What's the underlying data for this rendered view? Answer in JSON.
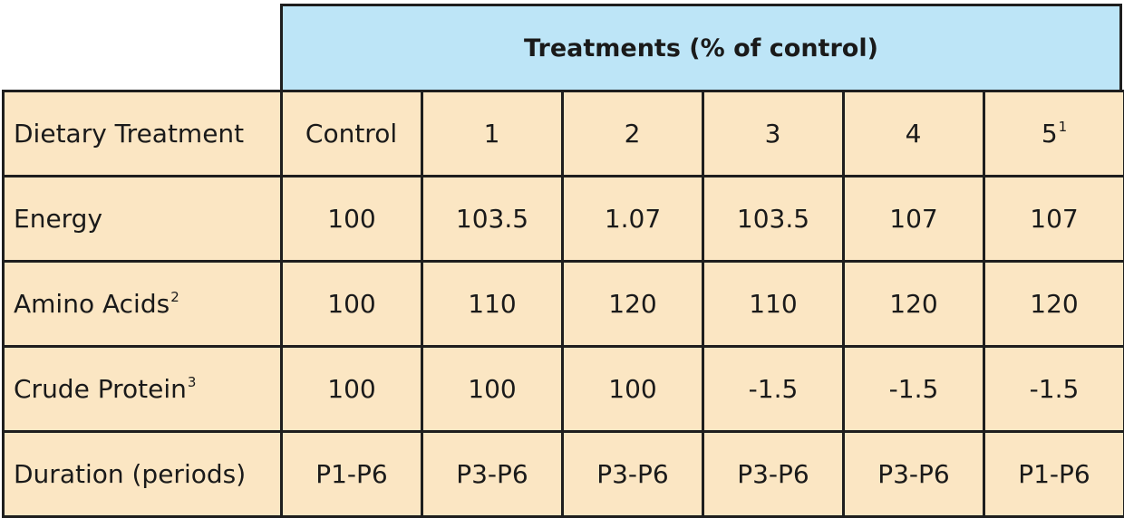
{
  "title": "Treatments (% of control)",
  "header": {
    "label": "Dietary Treatment",
    "columns": [
      {
        "label": "Control",
        "sup": ""
      },
      {
        "label": "1",
        "sup": ""
      },
      {
        "label": "2",
        "sup": ""
      },
      {
        "label": "3",
        "sup": ""
      },
      {
        "label": "4",
        "sup": ""
      },
      {
        "label": "5",
        "sup": "1"
      }
    ]
  },
  "rows": [
    {
      "label": "Energy",
      "sup": "",
      "values": [
        "100",
        "103.5",
        "1.07",
        "103.5",
        "107",
        "107"
      ]
    },
    {
      "label": "Amino Acids",
      "sup": "2",
      "values": [
        "100",
        "110",
        "120",
        "110",
        "120",
        "120"
      ]
    },
    {
      "label": "Crude Protein",
      "sup": "3",
      "values": [
        "100",
        "100",
        "100",
        "-1.5",
        "-1.5",
        "-1.5"
      ]
    },
    {
      "label": "Duration (periods)",
      "sup": "",
      "values": [
        "P1-P6",
        "P3-P6",
        "P3-P6",
        "P3-P6",
        "P3-P6",
        "P1-P6"
      ]
    }
  ],
  "colors": {
    "header_band": "#bde5f7",
    "cell_background": "#fbe6c3",
    "border": "#1e1e1e"
  }
}
